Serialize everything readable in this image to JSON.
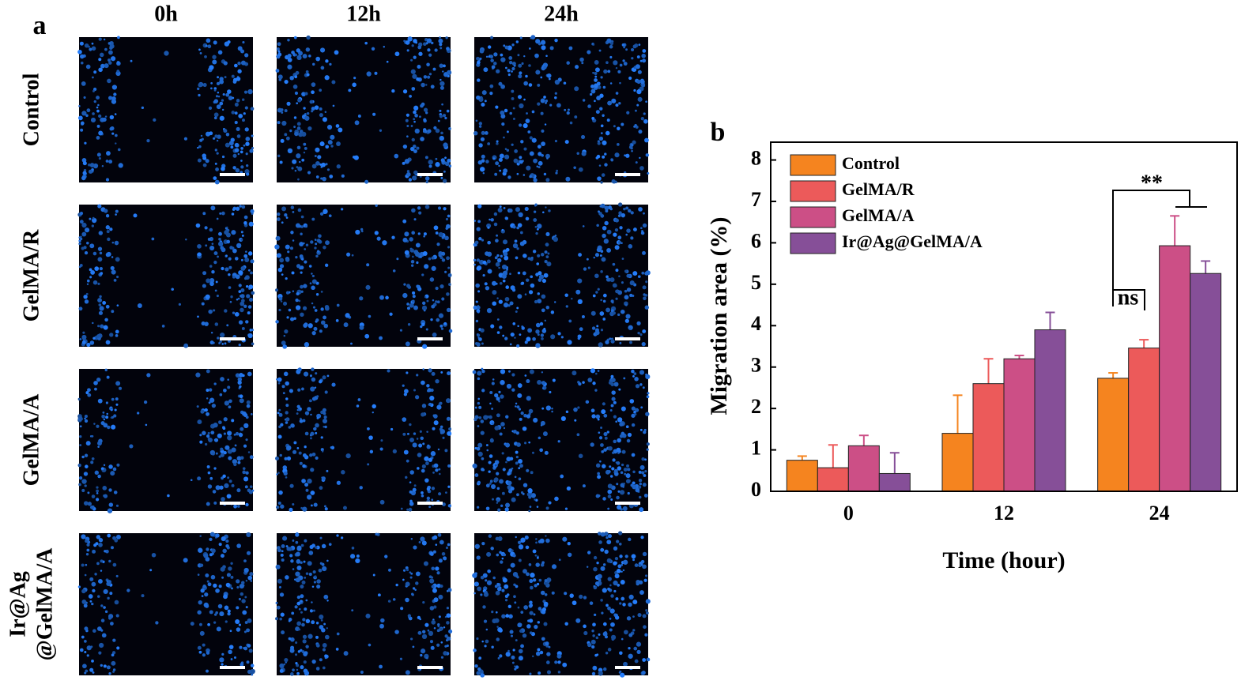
{
  "panel_a": {
    "label": "a",
    "columns": [
      "0h",
      "12h",
      "24h"
    ],
    "rows": [
      [
        "Control"
      ],
      [
        "GelMA/R"
      ],
      [
        "GelMA/A"
      ],
      [
        "Ir@Ag",
        "@GelMA/A"
      ]
    ]
  },
  "chart_data": {
    "type": "bar",
    "panel_label": "b",
    "y_label": "Migration area (%)",
    "x_label": "Time (hour)",
    "categories": [
      "0",
      "12",
      "24"
    ],
    "series": [
      {
        "name": "Control",
        "color": "#f5841f",
        "values": [
          0.75,
          1.4,
          2.73
        ],
        "errors": [
          0.1,
          0.92,
          0.13
        ]
      },
      {
        "name": "GelMA/R",
        "color": "#ec5a5a",
        "values": [
          0.57,
          2.6,
          3.46
        ],
        "errors": [
          0.55,
          0.6,
          0.2
        ]
      },
      {
        "name": "GelMA/A",
        "color": "#cc4f86",
        "values": [
          1.1,
          3.2,
          5.93
        ],
        "errors": [
          0.25,
          0.08,
          0.72
        ]
      },
      {
        "name": "Ir@Ag@GelMA/A",
        "color": "#864f98",
        "values": [
          0.43,
          3.9,
          5.26
        ],
        "errors": [
          0.5,
          0.42,
          0.3
        ]
      }
    ],
    "ylim": [
      0,
      8.43
    ],
    "yticks": [
      0,
      1,
      2,
      3,
      4,
      5,
      6,
      7,
      8
    ],
    "annotations": [
      "ns",
      "**"
    ]
  }
}
